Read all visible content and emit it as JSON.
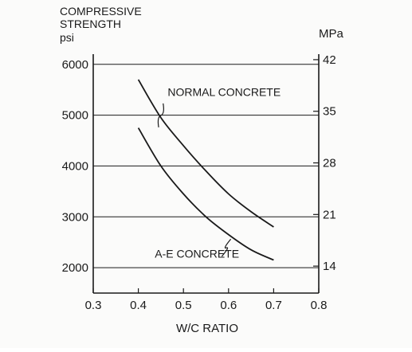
{
  "chart_data": {
    "type": "line",
    "y_title_lines": [
      "COMPRESSIVE",
      "STRENGTH",
      "psi"
    ],
    "right_unit": "MPa",
    "xlabel": "W/C RATIO",
    "xlim": [
      0.3,
      0.8
    ],
    "ylim": [
      1500,
      6200
    ],
    "x_ticks": [
      "0.3",
      "0.4",
      "0.5",
      "0.6",
      "0.7",
      "0.8"
    ],
    "x_tick_values": [
      0.3,
      0.4,
      0.5,
      0.6,
      0.7,
      0.8
    ],
    "y_ticks": [
      "2000",
      "3000",
      "4000",
      "5000",
      "6000"
    ],
    "y_tick_values": [
      2000,
      3000,
      4000,
      5000,
      6000
    ],
    "right_ticks": [
      "14",
      "21",
      "28",
      "35",
      "42"
    ],
    "right_tick_values": [
      14,
      21,
      28,
      35,
      42
    ],
    "grid": true,
    "series": [
      {
        "name": "NORMAL CONCRETE",
        "x": [
          0.4,
          0.45,
          0.5,
          0.55,
          0.6,
          0.65,
          0.7
        ],
        "y": [
          5700,
          4950,
          4400,
          3900,
          3450,
          3100,
          2800
        ]
      },
      {
        "name": "A-E CONCRETE",
        "x": [
          0.4,
          0.45,
          0.5,
          0.55,
          0.6,
          0.65,
          0.7
        ],
        "y": [
          4750,
          4000,
          3450,
          3000,
          2650,
          2350,
          2150
        ]
      }
    ]
  }
}
